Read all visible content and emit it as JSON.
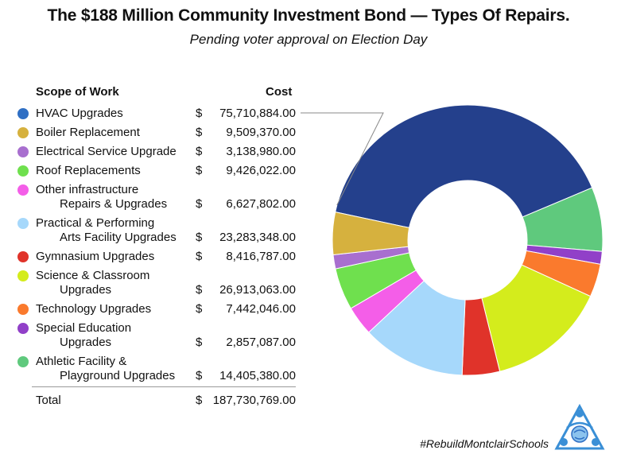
{
  "title": "The $188 Million Community Investment Bond — Types Of Repairs.",
  "subtitle": "Pending voter approval on Election Day",
  "table": {
    "col_scope": "Scope of Work",
    "col_cost": "Cost",
    "rows": [
      {
        "line1": "HVAC Upgrades",
        "line2": "",
        "dollar": "$",
        "amount": "75,710,884.00",
        "color": "#2f6fc4"
      },
      {
        "line1": "Boiler Replacement",
        "line2": "",
        "dollar": "$",
        "amount": "9,509,370.00",
        "color": "#d6b13e"
      },
      {
        "line1": "Electrical Service Upgrade",
        "line2": "",
        "dollar": "$",
        "amount": "3,138,980.00",
        "color": "#a86fcf"
      },
      {
        "line1": "Roof Replacements",
        "line2": "",
        "dollar": "$",
        "amount": "9,426,022.00",
        "color": "#6fe04e"
      },
      {
        "line1": "Other infrastructure",
        "line2": "Repairs & Upgrades",
        "dollar": "$",
        "amount": "6,627,802.00",
        "color": "#f45ee8"
      },
      {
        "line1": "Practical & Performing",
        "line2": "Arts Facility Upgrades",
        "dollar": "$",
        "amount": "23,283,348.00",
        "color": "#a6d8fb"
      },
      {
        "line1": "Gymnasium Upgrades",
        "line2": "",
        "dollar": "$",
        "amount": "8,416,787.00",
        "color": "#e0332a"
      },
      {
        "line1": "Science & Classroom",
        "line2": "Upgrades",
        "dollar": "$",
        "amount": "26,913,063.00",
        "color": "#d4ec1c"
      },
      {
        "line1": "Technology Upgrades",
        "line2": "",
        "dollar": "$",
        "amount": "7,442,046.00",
        "color": "#fa7a2d"
      },
      {
        "line1": "Special Education",
        "line2": "Upgrades",
        "dollar": "$",
        "amount": "2,857,087.00",
        "color": "#9140c8"
      },
      {
        "line1": "Athletic Facility &",
        "line2": "Playground Upgrades",
        "dollar": "$",
        "amount": "14,405,380.00",
        "color": "#5fc97d"
      }
    ],
    "total_label": "Total",
    "total_dollar": "$",
    "total_amount": "187,730,769.00"
  },
  "hashtag": "#RebuildMontclairSchools",
  "chart_data": {
    "type": "pie",
    "donut": true,
    "categories": [
      "HVAC Upgrades",
      "Athletic Facility & Playground Upgrades",
      "Special Education Upgrades",
      "Technology Upgrades",
      "Science & Classroom Upgrades",
      "Gymnasium Upgrades",
      "Practical & Performing Arts Facility Upgrades",
      "Other infrastructure Repairs & Upgrades",
      "Roof Replacements",
      "Electrical Service Upgrade",
      "Boiler Replacement"
    ],
    "values": [
      75710884,
      14405380,
      2857087,
      7442046,
      26913063,
      8416787,
      23283348,
      6627802,
      9426022,
      3138980,
      9509370
    ],
    "colors": [
      "#24408c",
      "#5fc97d",
      "#9140c8",
      "#fa7a2d",
      "#d4ec1c",
      "#e0332a",
      "#a6d8fb",
      "#f45ee8",
      "#6fe04e",
      "#a86fcf",
      "#d6b13e"
    ],
    "callout": "HVAC Upgrades"
  }
}
